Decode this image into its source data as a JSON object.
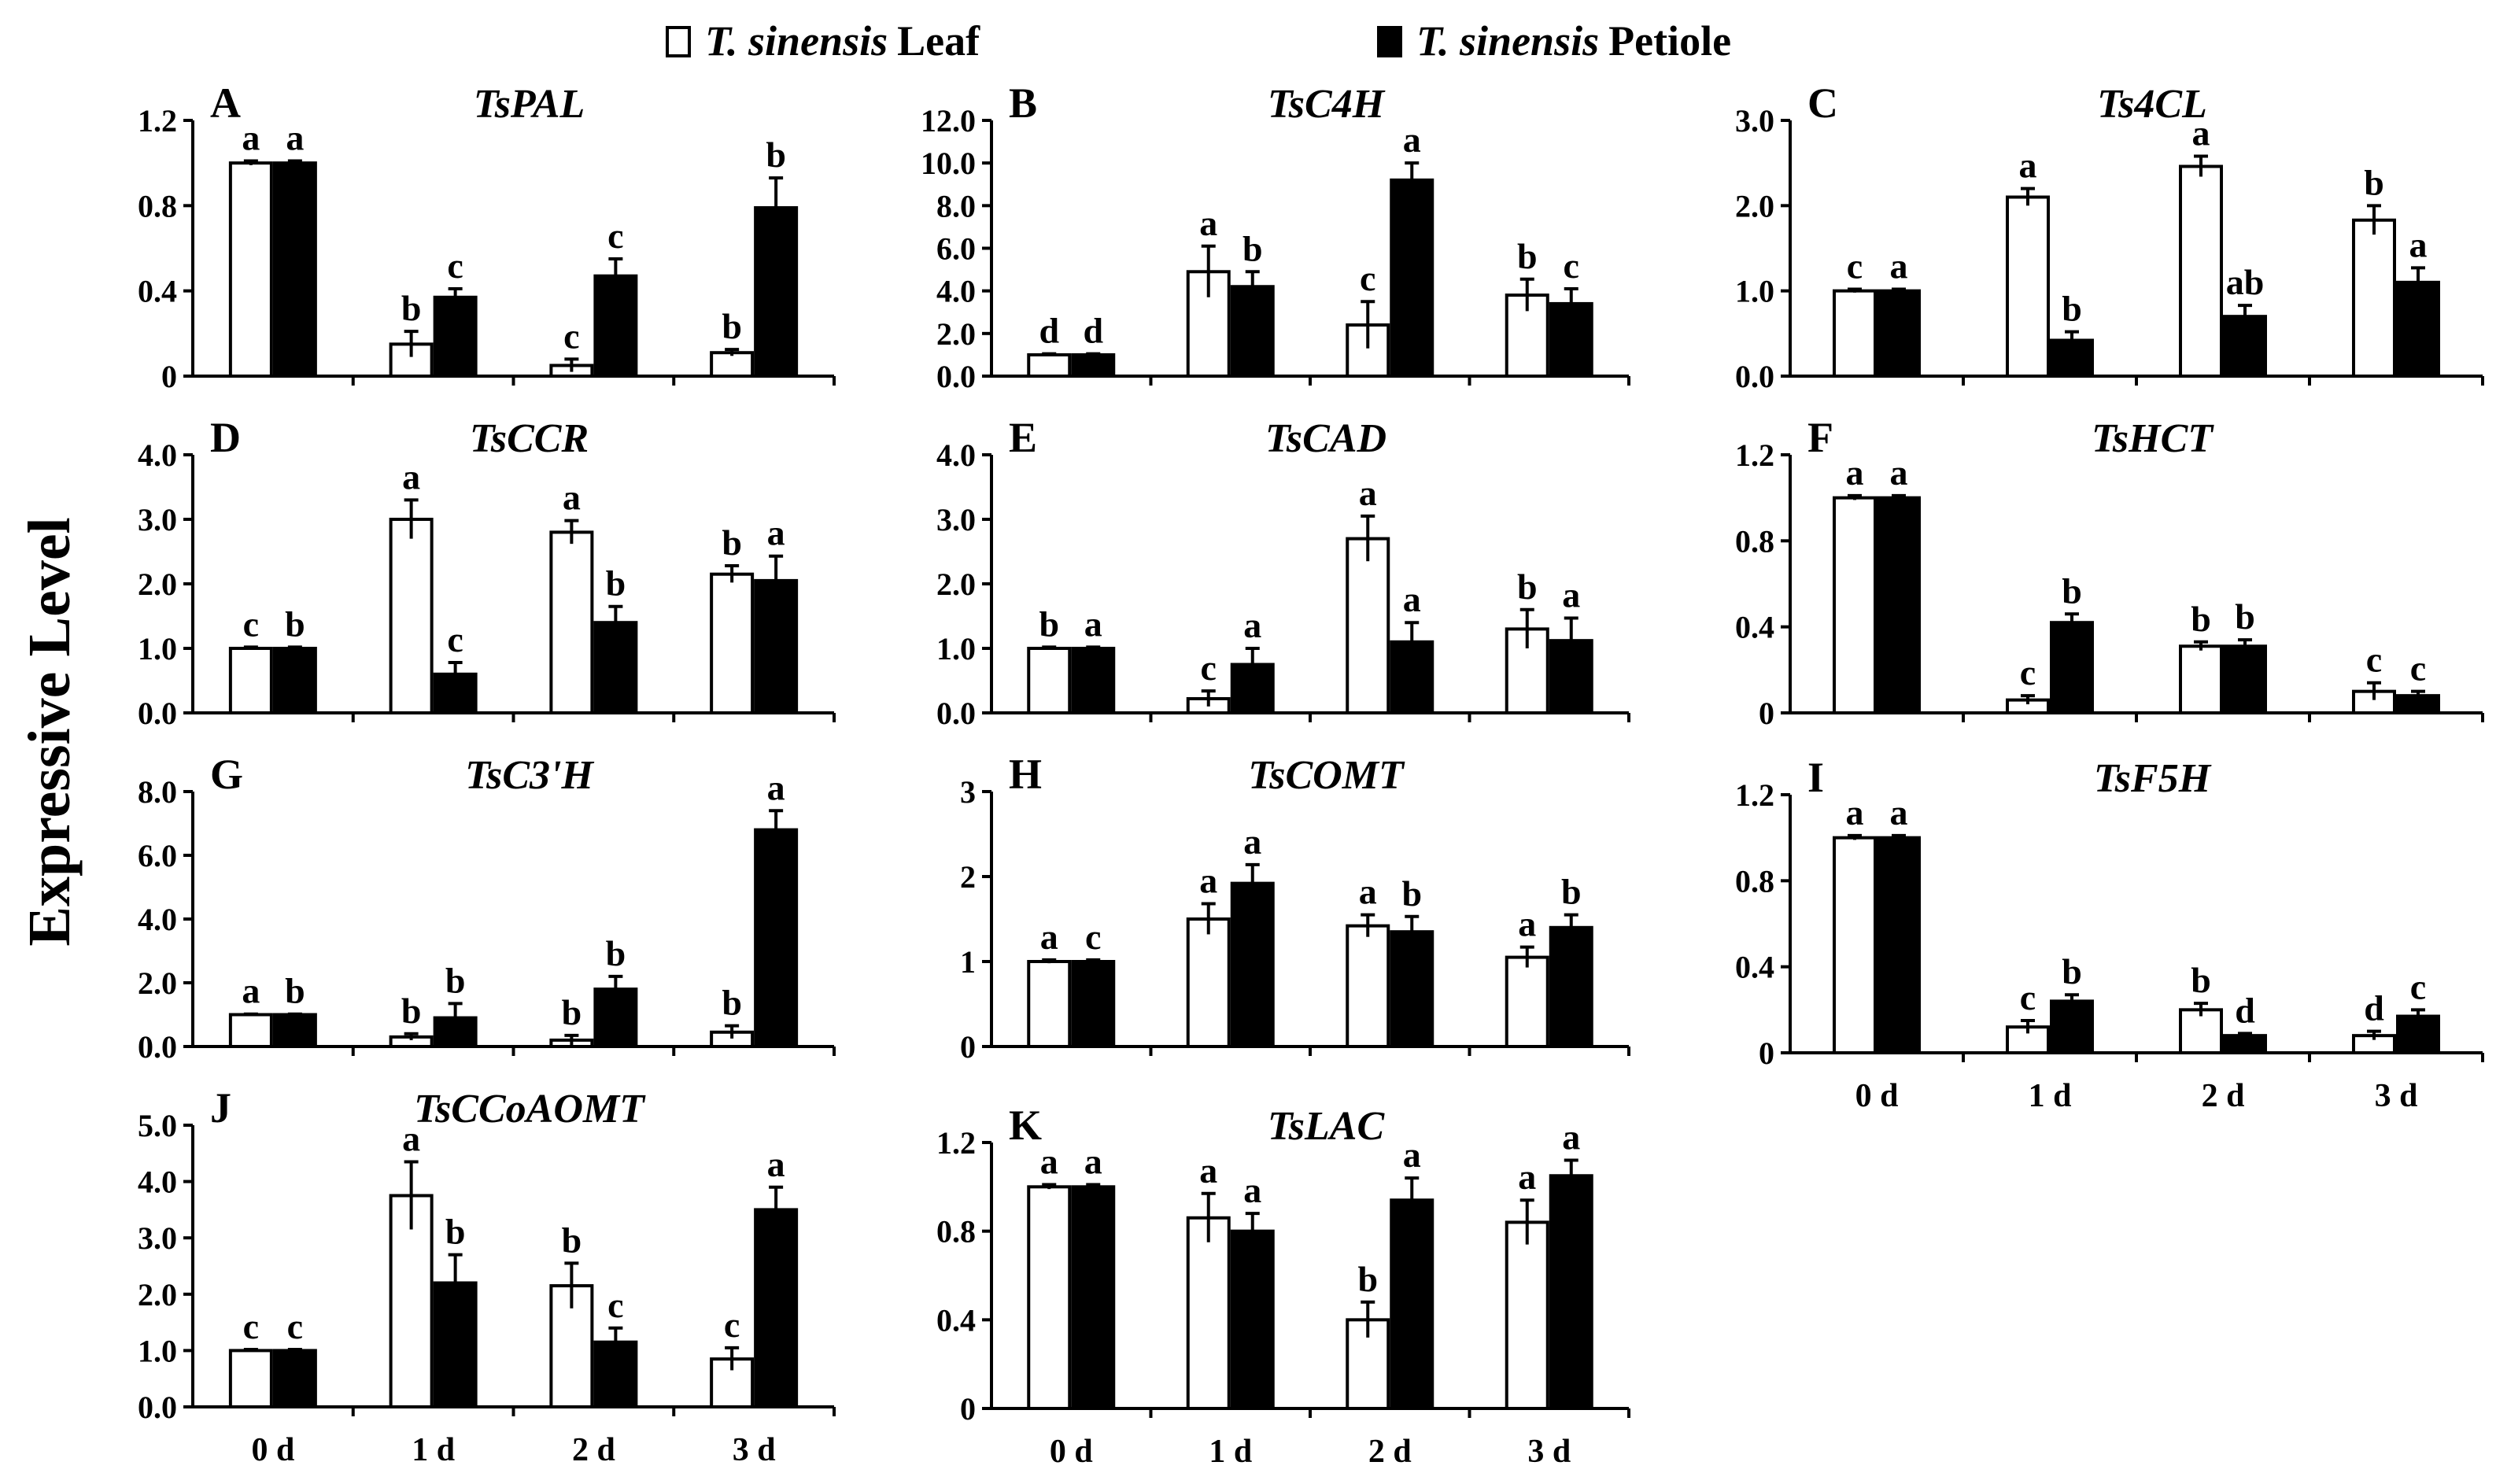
{
  "legend": {
    "items": [
      {
        "species": "T. sinensis",
        "tissue": "Leaf",
        "fill": "#ffffff"
      },
      {
        "species": "T. sinensis",
        "tissue": "Petiole",
        "fill": "#000000"
      }
    ]
  },
  "y_axis_title": "Expressive Level",
  "colors": {
    "leaf": "#ffffff",
    "petiole": "#000000",
    "stroke": "#000000"
  },
  "chart_data": [
    {
      "type": "bar",
      "panel": "A",
      "title": "TsPAL",
      "categories": [
        "0 d",
        "1 d",
        "2 d",
        "3 d"
      ],
      "ylim": [
        0,
        1.2
      ],
      "yticks": [
        "0",
        "0.4",
        "0.8",
        "1.2"
      ],
      "show_xticks": false,
      "series": [
        {
          "name": "T. sinensis Leaf",
          "values": [
            1.0,
            0.15,
            0.05,
            0.11
          ],
          "errors": [
            0.01,
            0.06,
            0.03,
            0.015
          ],
          "letters": [
            "a",
            "b",
            "c",
            "b"
          ]
        },
        {
          "name": "T. sinensis Petiole",
          "values": [
            1.0,
            0.37,
            0.47,
            0.79
          ],
          "errors": [
            0.01,
            0.04,
            0.08,
            0.14
          ],
          "letters": [
            "a",
            "c",
            "c",
            "b"
          ]
        }
      ]
    },
    {
      "type": "bar",
      "panel": "B",
      "title": "TsC4H",
      "categories": [
        "0 d",
        "1 d",
        "2 d",
        "3 d"
      ],
      "ylim": [
        0,
        12
      ],
      "yticks": [
        "0.0",
        "2.0",
        "4.0",
        "6.0",
        "8.0",
        "10.0",
        "12.0"
      ],
      "show_xticks": false,
      "series": [
        {
          "name": "T. sinensis Leaf",
          "values": [
            1.0,
            4.9,
            2.4,
            3.8
          ],
          "errors": [
            0.05,
            1.2,
            1.1,
            0.75
          ],
          "letters": [
            "d",
            "a",
            "c",
            "b"
          ]
        },
        {
          "name": "T. sinensis Petiole",
          "values": [
            1.0,
            4.2,
            9.2,
            3.4
          ],
          "errors": [
            0.05,
            0.7,
            0.8,
            0.7
          ],
          "letters": [
            "d",
            "b",
            "a",
            "c"
          ]
        }
      ]
    },
    {
      "type": "bar",
      "panel": "C",
      "title": "Ts4CL",
      "categories": [
        "0 d",
        "1 d",
        "2 d",
        "3 d"
      ],
      "ylim": [
        0,
        3
      ],
      "yticks": [
        "0.0",
        "1.0",
        "2.0",
        "3.0"
      ],
      "show_xticks": false,
      "series": [
        {
          "name": "T. sinensis Leaf",
          "values": [
            1.0,
            2.1,
            2.46,
            1.83
          ],
          "errors": [
            0.02,
            0.1,
            0.12,
            0.17
          ],
          "letters": [
            "c",
            "a",
            "a",
            "b"
          ]
        },
        {
          "name": "T. sinensis Petiole",
          "values": [
            1.0,
            0.42,
            0.7,
            1.1
          ],
          "errors": [
            0.02,
            0.1,
            0.13,
            0.17
          ],
          "letters": [
            "a",
            "b",
            "ab",
            "a"
          ]
        }
      ]
    },
    {
      "type": "bar",
      "panel": "D",
      "title": "TsCCR",
      "categories": [
        "0 d",
        "1 d",
        "2 d",
        "3 d"
      ],
      "ylim": [
        0,
        4
      ],
      "yticks": [
        "0.0",
        "1.0",
        "2.0",
        "3.0",
        "4.0"
      ],
      "show_xticks": false,
      "series": [
        {
          "name": "T. sinensis Leaf",
          "values": [
            1.0,
            3.0,
            2.8,
            2.15
          ],
          "errors": [
            0.02,
            0.3,
            0.18,
            0.13
          ],
          "letters": [
            "c",
            "a",
            "a",
            "b"
          ]
        },
        {
          "name": "T. sinensis Petiole",
          "values": [
            1.0,
            0.6,
            1.4,
            2.05
          ],
          "errors": [
            0.02,
            0.18,
            0.25,
            0.38
          ],
          "letters": [
            "b",
            "c",
            "b",
            "a"
          ]
        }
      ]
    },
    {
      "type": "bar",
      "panel": "E",
      "title": "TsCAD",
      "categories": [
        "0 d",
        "1 d",
        "2 d",
        "3 d"
      ],
      "ylim": [
        0,
        4
      ],
      "yticks": [
        "0.0",
        "1.0",
        "2.0",
        "3.0",
        "4.0"
      ],
      "show_xticks": false,
      "series": [
        {
          "name": "T. sinensis Leaf",
          "values": [
            1.0,
            0.22,
            2.7,
            1.3
          ],
          "errors": [
            0.02,
            0.12,
            0.35,
            0.3
          ],
          "letters": [
            "b",
            "c",
            "a",
            "b"
          ]
        },
        {
          "name": "T. sinensis Petiole",
          "values": [
            1.0,
            0.75,
            1.1,
            1.12
          ],
          "errors": [
            0.02,
            0.25,
            0.3,
            0.35
          ],
          "letters": [
            "a",
            "a",
            "a",
            "a"
          ]
        }
      ]
    },
    {
      "type": "bar",
      "panel": "F",
      "title": "TsHCT",
      "categories": [
        "0 d",
        "1 d",
        "2 d",
        "3 d"
      ],
      "ylim": [
        0,
        1.2
      ],
      "yticks": [
        "0",
        "0.4",
        "0.8",
        "1.2"
      ],
      "show_xticks": false,
      "series": [
        {
          "name": "T. sinensis Leaf",
          "values": [
            1.0,
            0.06,
            0.31,
            0.1
          ],
          "errors": [
            0.01,
            0.02,
            0.02,
            0.04
          ],
          "letters": [
            "a",
            "c",
            "b",
            "c"
          ]
        },
        {
          "name": "T. sinensis Petiole",
          "values": [
            1.0,
            0.42,
            0.31,
            0.08
          ],
          "errors": [
            0.01,
            0.04,
            0.03,
            0.02
          ],
          "letters": [
            "a",
            "b",
            "b",
            "c"
          ]
        }
      ]
    },
    {
      "type": "bar",
      "panel": "G",
      "title": "TsC3'H",
      "categories": [
        "0 d",
        "1 d",
        "2 d",
        "3 d"
      ],
      "ylim": [
        0,
        8
      ],
      "yticks": [
        "0.0",
        "2.0",
        "4.0",
        "6.0",
        "8.0"
      ],
      "show_xticks": false,
      "series": [
        {
          "name": "T. sinensis Leaf",
          "values": [
            1.0,
            0.3,
            0.2,
            0.45
          ],
          "errors": [
            0.02,
            0.1,
            0.15,
            0.2
          ],
          "letters": [
            "a",
            "b",
            "b",
            "b"
          ]
        },
        {
          "name": "T. sinensis Petiole",
          "values": [
            1.0,
            0.9,
            1.8,
            6.8
          ],
          "errors": [
            0.02,
            0.45,
            0.4,
            0.6
          ],
          "letters": [
            "b",
            "b",
            "b",
            "a"
          ]
        }
      ]
    },
    {
      "type": "bar",
      "panel": "H",
      "title": "TsCOMT",
      "categories": [
        "0 d",
        "1 d",
        "2 d",
        "3 d"
      ],
      "ylim": [
        0,
        3
      ],
      "yticks": [
        "0",
        "1",
        "2",
        "3"
      ],
      "show_xticks": false,
      "series": [
        {
          "name": "T. sinensis Leaf",
          "values": [
            1.0,
            1.5,
            1.42,
            1.05
          ],
          "errors": [
            0.02,
            0.18,
            0.13,
            0.12
          ],
          "letters": [
            "a",
            "a",
            "a",
            "a"
          ]
        },
        {
          "name": "T. sinensis Petiole",
          "values": [
            1.0,
            1.92,
            1.35,
            1.4
          ],
          "errors": [
            0.02,
            0.22,
            0.18,
            0.15
          ],
          "letters": [
            "c",
            "a",
            "b",
            "b"
          ]
        }
      ]
    },
    {
      "type": "bar",
      "panel": "I",
      "title": "TsF5H",
      "categories": [
        "0 d",
        "1 d",
        "2 d",
        "3 d"
      ],
      "ylim": [
        0,
        1.2
      ],
      "yticks": [
        "0",
        "0.4",
        "0.8",
        "1.2"
      ],
      "show_xticks": true,
      "series": [
        {
          "name": "T. sinensis Leaf",
          "values": [
            1.0,
            0.12,
            0.2,
            0.08
          ],
          "errors": [
            0.01,
            0.03,
            0.03,
            0.02
          ],
          "letters": [
            "a",
            "c",
            "b",
            "d"
          ]
        },
        {
          "name": "T. sinensis Petiole",
          "values": [
            1.0,
            0.24,
            0.08,
            0.17
          ],
          "errors": [
            0.01,
            0.03,
            0.01,
            0.03
          ],
          "letters": [
            "a",
            "b",
            "d",
            "c"
          ]
        }
      ]
    },
    {
      "type": "bar",
      "panel": "J",
      "title": "TsCCoAOMT",
      "categories": [
        "0 d",
        "1 d",
        "2 d",
        "3 d"
      ],
      "ylim": [
        0,
        5
      ],
      "yticks": [
        "0.0",
        "1.0",
        "2.0",
        "3.0",
        "4.0",
        "5.0"
      ],
      "show_xticks": true,
      "series": [
        {
          "name": "T. sinensis Leaf",
          "values": [
            1.0,
            3.75,
            2.15,
            0.85
          ],
          "errors": [
            0.02,
            0.6,
            0.4,
            0.2
          ],
          "letters": [
            "c",
            "a",
            "b",
            "c"
          ]
        },
        {
          "name": "T. sinensis Petiole",
          "values": [
            1.0,
            2.2,
            1.15,
            3.5
          ],
          "errors": [
            0.02,
            0.5,
            0.25,
            0.4
          ],
          "letters": [
            "c",
            "b",
            "c",
            "a"
          ]
        }
      ]
    },
    {
      "type": "bar",
      "panel": "K",
      "title": "TsLAC",
      "categories": [
        "0 d",
        "1 d",
        "2 d",
        "3 d"
      ],
      "ylim": [
        0,
        1.2
      ],
      "yticks": [
        "0",
        "0.4",
        "0.8",
        "1.2"
      ],
      "show_xticks": true,
      "series": [
        {
          "name": "T. sinensis Leaf",
          "values": [
            1.0,
            0.86,
            0.4,
            0.84
          ],
          "errors": [
            0.01,
            0.11,
            0.08,
            0.1
          ],
          "letters": [
            "a",
            "a",
            "b",
            "a"
          ]
        },
        {
          "name": "T. sinensis Petiole",
          "values": [
            1.0,
            0.8,
            0.94,
            1.05
          ],
          "errors": [
            0.01,
            0.08,
            0.1,
            0.07
          ],
          "letters": [
            "a",
            "a",
            "a",
            "a"
          ]
        }
      ]
    }
  ]
}
